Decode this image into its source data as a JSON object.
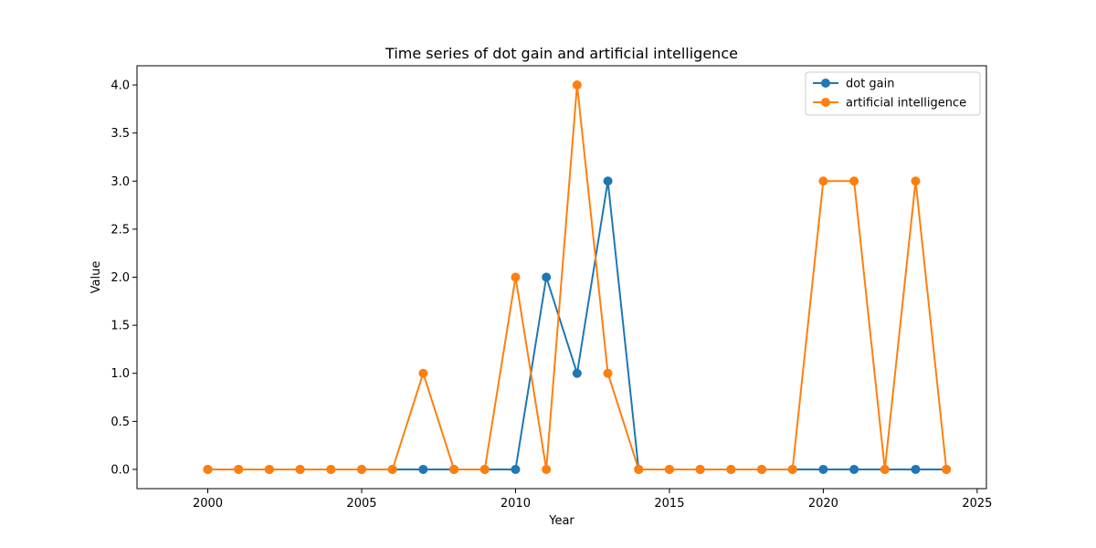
{
  "chart_data": {
    "type": "line",
    "title": "Time series of dot gain and artificial intelligence",
    "xlabel": "Year",
    "ylabel": "Value",
    "x": [
      2000,
      2001,
      2002,
      2003,
      2004,
      2005,
      2006,
      2007,
      2008,
      2009,
      2010,
      2011,
      2012,
      2013,
      2014,
      2015,
      2016,
      2017,
      2018,
      2019,
      2020,
      2021,
      2022,
      2023,
      2024
    ],
    "series": [
      {
        "name": "dot gain",
        "color": "#1f77b4",
        "values": [
          0,
          0,
          0,
          0,
          0,
          0,
          0,
          0,
          0,
          0,
          0,
          2,
          1,
          3,
          0,
          0,
          0,
          0,
          0,
          0,
          0,
          0,
          0,
          0,
          0
        ]
      },
      {
        "name": "artificial intelligence",
        "color": "#ff7f0e",
        "values": [
          0,
          0,
          0,
          0,
          0,
          0,
          0,
          1,
          0,
          0,
          2,
          0,
          4,
          1,
          0,
          0,
          0,
          0,
          0,
          0,
          3,
          3,
          0,
          3,
          0
        ]
      }
    ],
    "xlim": [
      1997.7,
      2025.3
    ],
    "ylim": [
      -0.2,
      4.2
    ],
    "xticks": [
      2000,
      2005,
      2010,
      2015,
      2020,
      2025
    ],
    "xtick_labels": [
      "2000",
      "2005",
      "2010",
      "2015",
      "2020",
      "2025"
    ],
    "yticks": [
      0,
      0.5,
      1,
      1.5,
      2,
      2.5,
      3,
      3.5,
      4
    ],
    "ytick_labels": [
      "0.0",
      "0.5",
      "1.0",
      "1.5",
      "2.0",
      "2.5",
      "3.0",
      "3.5",
      "4.0"
    ],
    "grid": false,
    "legend_position": "top-right"
  }
}
